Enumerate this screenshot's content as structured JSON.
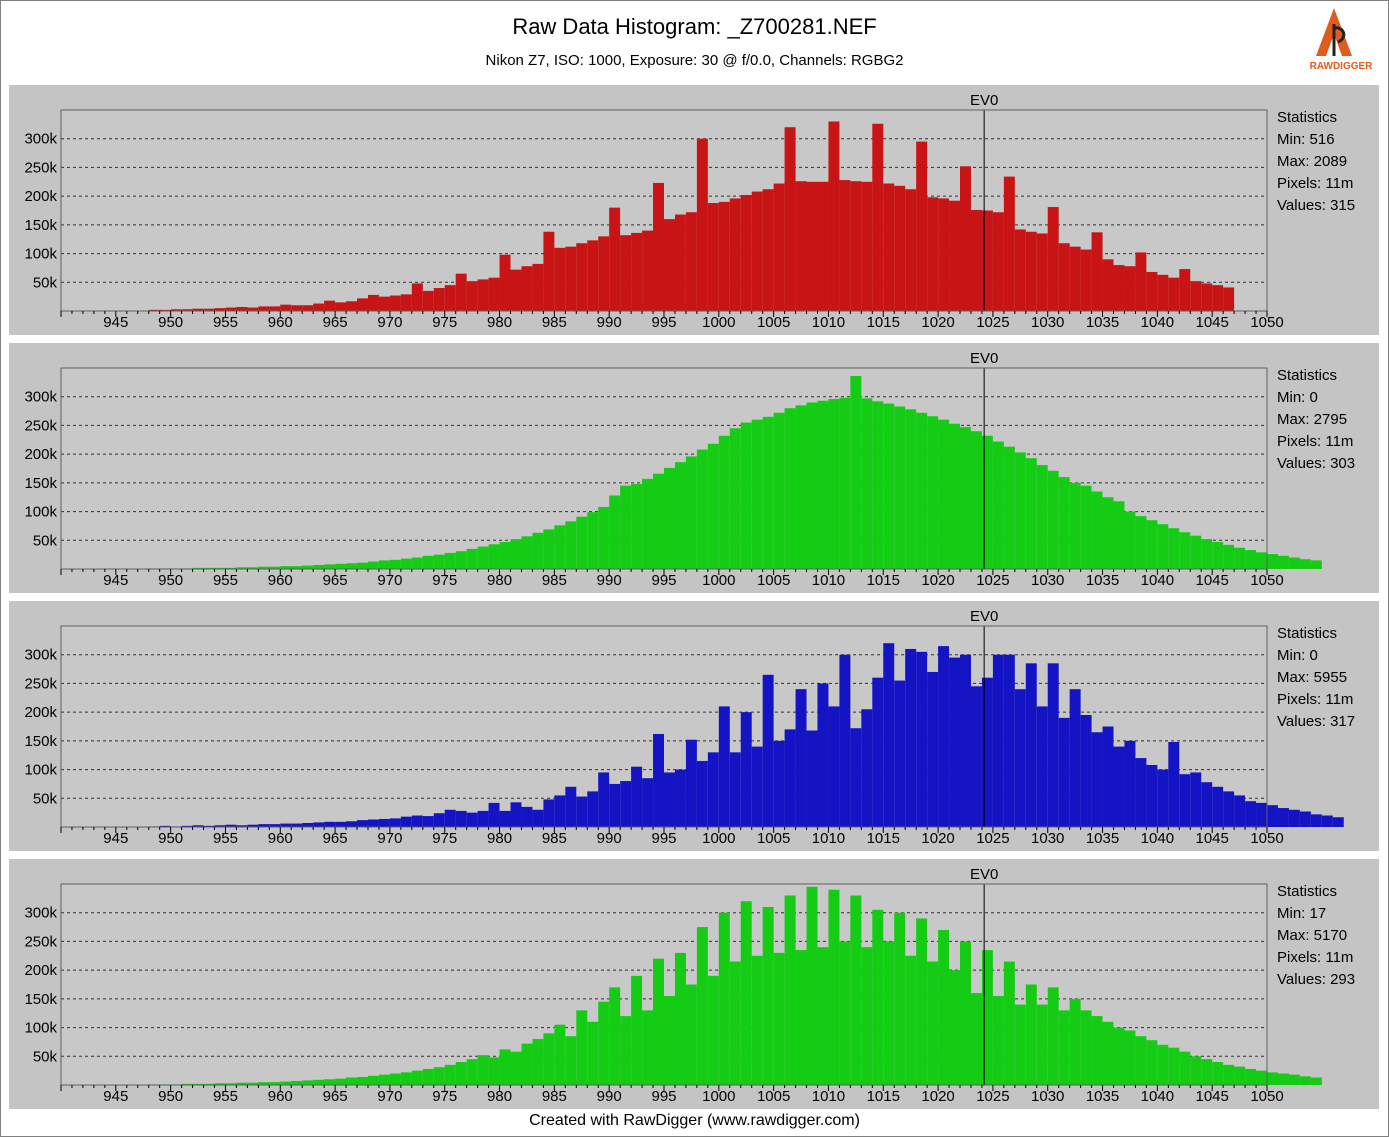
{
  "title": "Raw Data Histogram:  _Z700281.NEF",
  "subtitle": "Nikon Z7, ISO: 1000, Exposure: 30 @ f/0.0, Channels: RGBG2",
  "footer": "Created with RawDigger (www.rawdigger.com)",
  "logo_text": "RAWDIGGER",
  "colors": {
    "R": "#c81414",
    "G": "#14cc14",
    "B": "#1414c4",
    "G2": "#14cc14",
    "panel": "#c4c4c4",
    "plot": "#c8c8c8"
  },
  "chart_data": [
    {
      "type": "bar",
      "channel": "R",
      "x_range": [
        940,
        1050
      ],
      "x_ticks": [
        "945",
        "950",
        "955",
        "960",
        "965",
        "970",
        "975",
        "980",
        "985",
        "990",
        "995",
        "1000",
        "1005",
        "1010",
        "1015",
        "1020",
        "1025",
        "1030",
        "1035",
        "1040",
        "1045",
        "1050"
      ],
      "y_ticks": [
        "50k",
        "100k",
        "150k",
        "200k",
        "250k",
        "300k"
      ],
      "ylim": [
        0,
        350000
      ],
      "marker": {
        "label": "EV0",
        "x": 1024.2
      },
      "bins_start": 948,
      "bin_width": 1,
      "values": [
        2000,
        2000,
        3000,
        3000,
        4000,
        4000,
        5000,
        6000,
        7000,
        6000,
        8000,
        8000,
        11000,
        10000,
        10000,
        13000,
        18000,
        15000,
        17000,
        22000,
        28000,
        25000,
        27000,
        29000,
        48000,
        35000,
        40000,
        45000,
        65000,
        52000,
        55000,
        58000,
        98000,
        72000,
        78000,
        82000,
        138000,
        110000,
        112000,
        118000,
        123000,
        130000,
        180000,
        132000,
        136000,
        140000,
        223000,
        160000,
        168000,
        172000,
        300000,
        188000,
        190000,
        196000,
        202000,
        208000,
        212000,
        222000,
        320000,
        226000,
        225000,
        225000,
        330000,
        228000,
        226000,
        225000,
        326000,
        222000,
        218000,
        212000,
        295000,
        198000,
        196000,
        192000,
        252000,
        176000,
        175000,
        172000,
        234000,
        142000,
        138000,
        135000,
        181000,
        118000,
        112000,
        107000,
        137000,
        90000,
        80000,
        78000,
        102000,
        68000,
        63000,
        58000,
        73000,
        52000,
        48000,
        45000,
        41000
      ],
      "stats": {
        "heading": "Statistics",
        "min": "Min: 516",
        "max": "Max: 2089",
        "pixels": "Pixels: 11m",
        "values": "Values: 315"
      }
    },
    {
      "type": "bar",
      "channel": "G",
      "x_range": [
        940,
        1050
      ],
      "x_ticks": [
        "945",
        "950",
        "955",
        "960",
        "965",
        "970",
        "975",
        "980",
        "985",
        "990",
        "995",
        "1000",
        "1005",
        "1010",
        "1015",
        "1020",
        "1025",
        "1030",
        "1035",
        "1040",
        "1045",
        "1050"
      ],
      "y_ticks": [
        "50k",
        "100k",
        "150k",
        "200k",
        "250k",
        "300k"
      ],
      "ylim": [
        0,
        350000
      ],
      "marker": {
        "label": "EV0",
        "x": 1024.2
      },
      "bins_start": 948,
      "bin_width": 1,
      "values": [
        1000,
        1000,
        1000,
        1000,
        2000,
        2000,
        2000,
        2000,
        3000,
        3000,
        4000,
        4000,
        5000,
        5000,
        6000,
        7000,
        8000,
        9000,
        10000,
        11000,
        13000,
        15000,
        16000,
        18000,
        20000,
        23000,
        25000,
        28000,
        31000,
        35000,
        39000,
        43000,
        47000,
        52000,
        57000,
        63000,
        69000,
        76000,
        83000,
        91000,
        99000,
        108000,
        128000,
        145000,
        148000,
        157000,
        166000,
        176000,
        186000,
        196000,
        208000,
        218000,
        232000,
        245000,
        255000,
        260000,
        265000,
        272000,
        280000,
        285000,
        290000,
        293000,
        296000,
        298000,
        336000,
        297000,
        292000,
        288000,
        283000,
        278000,
        272000,
        266000,
        260000,
        253000,
        247000,
        240000,
        232000,
        222000,
        213000,
        203000,
        193000,
        181000,
        171000,
        160000,
        150000,
        145000,
        135000,
        125000,
        118000,
        100000,
        92000,
        85000,
        78000,
        71000,
        64000,
        58000,
        52000,
        47000,
        42000,
        37000,
        33000,
        29000,
        26000,
        23000,
        20000,
        17000,
        15000
      ],
      "stats": {
        "heading": "Statistics",
        "min": "Min: 0",
        "max": "Max: 2795",
        "pixels": "Pixels: 11m",
        "values": "Values: 303"
      }
    },
    {
      "type": "bar",
      "channel": "B",
      "x_range": [
        940,
        1050
      ],
      "x_ticks": [
        "945",
        "950",
        "955",
        "960",
        "965",
        "970",
        "975",
        "980",
        "985",
        "990",
        "995",
        "1000",
        "1005",
        "1010",
        "1015",
        "1020",
        "1025",
        "1030",
        "1035",
        "1040",
        "1045",
        "1050"
      ],
      "y_ticks": [
        "50k",
        "100k",
        "150k",
        "200k",
        "250k",
        "300k"
      ],
      "ylim": [
        0,
        350000
      ],
      "marker": {
        "label": "EV0",
        "x": 1024.2
      },
      "bins_start": 948,
      "bin_width": 1,
      "values": [
        1000,
        2000,
        1000,
        2000,
        3000,
        2000,
        3000,
        4000,
        3000,
        4000,
        5000,
        5000,
        6000,
        6000,
        7000,
        8000,
        9000,
        9000,
        10000,
        12000,
        13000,
        14000,
        15000,
        18000,
        20000,
        19000,
        24000,
        30000,
        28000,
        25000,
        28000,
        42000,
        28000,
        43000,
        35000,
        30000,
        48000,
        55000,
        70000,
        53000,
        62000,
        95000,
        75000,
        80000,
        105000,
        85000,
        162000,
        95000,
        100000,
        152000,
        115000,
        130000,
        210000,
        130000,
        200000,
        140000,
        265000,
        150000,
        170000,
        240000,
        168000,
        250000,
        210000,
        300000,
        172000,
        205000,
        260000,
        320000,
        255000,
        310000,
        305000,
        270000,
        315000,
        295000,
        300000,
        245000,
        260000,
        300000,
        300000,
        240000,
        285000,
        210000,
        285000,
        190000,
        240000,
        195000,
        165000,
        175000,
        140000,
        150000,
        120000,
        108000,
        100000,
        148000,
        92000,
        95000,
        78000,
        70000,
        62000,
        55000,
        45000,
        42000,
        38000,
        33000,
        30000,
        27000,
        22000,
        20000,
        17000
      ],
      "stats": {
        "heading": "Statistics",
        "min": "Min: 0",
        "max": "Max: 5955",
        "pixels": "Pixels: 11m",
        "values": "Values: 317"
      }
    },
    {
      "type": "bar",
      "channel": "G2",
      "x_range": [
        940,
        1050
      ],
      "x_ticks": [
        "945",
        "950",
        "955",
        "960",
        "965",
        "970",
        "975",
        "980",
        "985",
        "990",
        "995",
        "1000",
        "1005",
        "1010",
        "1015",
        "1020",
        "1025",
        "1030",
        "1035",
        "1040",
        "1045",
        "1050"
      ],
      "y_ticks": [
        "50k",
        "100k",
        "150k",
        "200k",
        "250k",
        "300k"
      ],
      "ylim": [
        0,
        350000
      ],
      "marker": {
        "label": "EV0",
        "x": 1024.2
      },
      "bins_start": 948,
      "bin_width": 1,
      "values": [
        1000,
        1000,
        1000,
        2000,
        2000,
        2000,
        3000,
        3000,
        4000,
        4000,
        5000,
        5000,
        6000,
        7000,
        8000,
        9000,
        10000,
        11000,
        13000,
        14000,
        16000,
        18000,
        20000,
        22000,
        25000,
        28000,
        31000,
        35000,
        40000,
        45000,
        52000,
        48000,
        62000,
        58000,
        72000,
        80000,
        90000,
        105000,
        85000,
        130000,
        110000,
        145000,
        170000,
        120000,
        190000,
        130000,
        220000,
        155000,
        230000,
        175000,
        275000,
        190000,
        300000,
        215000,
        320000,
        225000,
        310000,
        230000,
        330000,
        235000,
        345000,
        240000,
        340000,
        250000,
        330000,
        240000,
        305000,
        250000,
        300000,
        225000,
        290000,
        215000,
        270000,
        200000,
        250000,
        160000,
        235000,
        155000,
        215000,
        140000,
        175000,
        140000,
        170000,
        130000,
        150000,
        130000,
        120000,
        110000,
        100000,
        95000,
        85000,
        78000,
        70000,
        65000,
        58000,
        50000,
        45000,
        40000,
        35000,
        32000,
        28000,
        25000,
        22000,
        20000,
        18000,
        15000,
        13000
      ],
      "stats": {
        "heading": "Statistics",
        "min": "Min: 17",
        "max": "Max: 5170",
        "pixels": "Pixels: 11m",
        "values": "Values: 293"
      }
    }
  ]
}
